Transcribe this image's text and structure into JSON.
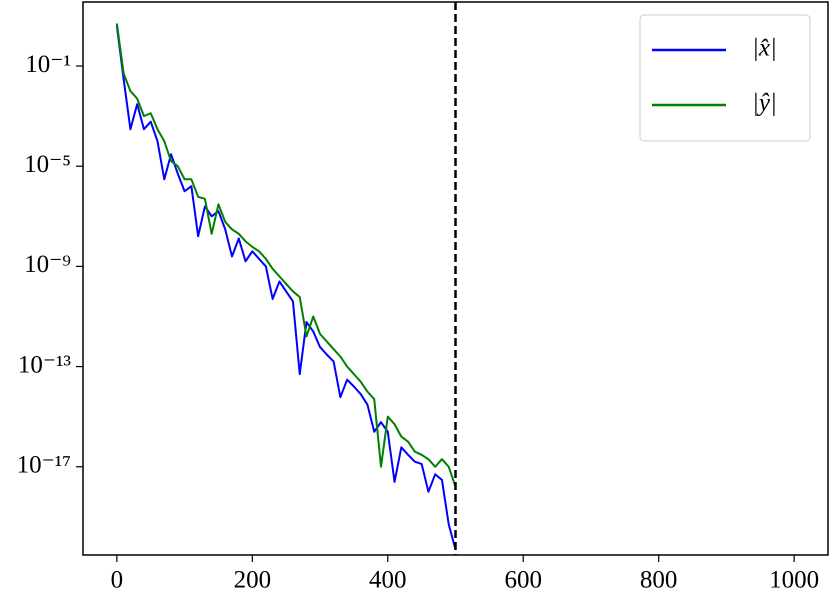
{
  "chart_data": {
    "type": "line",
    "x": [
      0,
      10,
      20,
      30,
      40,
      50,
      60,
      70,
      80,
      90,
      100,
      110,
      120,
      130,
      140,
      150,
      160,
      170,
      180,
      190,
      200,
      210,
      220,
      230,
      240,
      250,
      260,
      270,
      280,
      290,
      300,
      310,
      320,
      330,
      340,
      350,
      360,
      370,
      380,
      390,
      400,
      410,
      420,
      430,
      440,
      450,
      460,
      470,
      480,
      490,
      500
    ],
    "series": [
      {
        "name": "|x̂|",
        "color": "#0000ff",
        "values": [
          4,
          0.03,
          0.0003,
          0.003,
          0.0003,
          0.0006,
          0.0001,
          3e-06,
          3e-05,
          5e-06,
          1e-06,
          1.6e-06,
          1.6e-08,
          2.5e-07,
          1e-07,
          1.6e-07,
          3e-08,
          2.5e-09,
          1.3e-08,
          1.6e-09,
          4e-09,
          2e-09,
          1e-09,
          5e-11,
          2.5e-10,
          1e-10,
          4e-11,
          5e-14,
          6e-12,
          2.5e-12,
          6e-13,
          3e-13,
          1.6e-13,
          6e-15,
          3e-14,
          1.6e-14,
          8e-15,
          3e-15,
          2.5e-16,
          6e-16,
          2.5e-16,
          2.5e-18,
          6e-17,
          3e-17,
          1.6e-17,
          1.3e-17,
          1e-18,
          5e-18,
          3e-18,
          5e-20,
          5e-21
        ]
      },
      {
        "name": "|ŷ|",
        "color": "#008000",
        "values": [
          5,
          0.05,
          0.01,
          0.005,
          0.001,
          0.0013,
          0.0003,
          0.0001,
          1.6e-05,
          1e-05,
          3e-06,
          3e-06,
          6e-07,
          5e-07,
          2e-08,
          3e-07,
          6e-08,
          3e-08,
          2e-08,
          1e-08,
          6e-09,
          4e-09,
          2e-09,
          8e-10,
          4e-10,
          2e-10,
          1e-10,
          6e-11,
          1.6e-12,
          1e-11,
          2e-12,
          1e-12,
          5e-13,
          2.5e-13,
          1e-13,
          5e-14,
          2.5e-14,
          1e-14,
          5e-15,
          1e-17,
          1e-15,
          5e-16,
          1.6e-16,
          1e-16,
          4e-17,
          3e-17,
          2e-17,
          1e-17,
          2e-17,
          1e-17,
          1.6e-18
        ]
      }
    ],
    "xlim": [
      -50,
      1050
    ],
    "xticks": [
      0,
      200,
      400,
      600,
      800,
      1000
    ],
    "ylim": [
      3e-21,
      36
    ],
    "yscale": "log",
    "yticks": [
      {
        "value": 0.1,
        "label": "10⁻¹"
      },
      {
        "value": 1e-05,
        "label": "10⁻⁵"
      },
      {
        "value": 1e-09,
        "label": "10⁻⁹"
      },
      {
        "value": 1e-13,
        "label": "10⁻¹³"
      },
      {
        "value": 1e-17,
        "label": "10⁻¹⁷"
      }
    ],
    "vline": 500,
    "vline_color": "#000000",
    "legend": "upper right"
  }
}
